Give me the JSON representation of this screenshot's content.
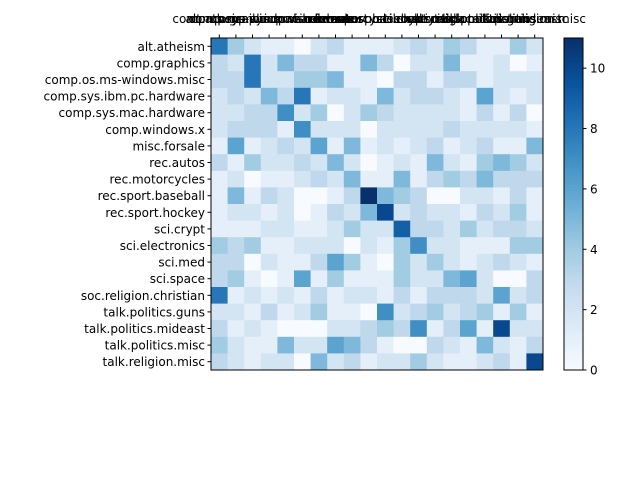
{
  "chart_data": {
    "type": "heatmap",
    "title": "",
    "xlabel": "",
    "ylabel": "",
    "categories": [
      "alt.atheism",
      "comp.graphics",
      "comp.os.ms-windows.misc",
      "comp.sys.ibm.pc.hardware",
      "comp.sys.mac.hardware",
      "comp.windows.x",
      "misc.forsale",
      "rec.autos",
      "rec.motorcycles",
      "rec.sport.baseball",
      "rec.sport.hockey",
      "sci.crypt",
      "sci.electronics",
      "sci.med",
      "sci.space",
      "soc.religion.christian",
      "talk.politics.guns",
      "talk.politics.mideast",
      "talk.politics.misc",
      "talk.religion.misc"
    ],
    "x_tick_labels": [
      "alt.atheism",
      "comp.graphics",
      "comp.os.ms-windows.misc",
      "comp.sys.ibm.pc.hardware",
      "comp.sys.mac.hardware",
      "comp.windows.x",
      "misc.forsale",
      "rec.autos",
      "rec.motorcycles",
      "rec.sport.baseball",
      "rec.sport.hockey",
      "sci.crypt",
      "sci.electronics",
      "sci.med",
      "sci.space",
      "soc.religion.christian",
      "talk.politics.guns",
      "talk.politics.mideast",
      "talk.politics.misc",
      "talk.religion.misc"
    ],
    "matrix": [
      [
        8,
        4,
        2,
        1,
        1,
        0,
        2,
        3,
        1,
        1,
        1,
        2,
        3,
        2,
        4,
        3,
        1,
        1,
        4,
        2
      ],
      [
        3,
        2,
        8,
        2,
        5,
        3,
        3,
        1,
        1,
        5,
        3,
        0,
        2,
        2,
        5,
        1,
        1,
        2,
        0,
        1
      ],
      [
        3,
        3,
        8,
        2,
        2,
        4,
        4,
        5,
        1,
        1,
        0,
        3,
        3,
        1,
        3,
        3,
        1,
        2,
        2,
        2
      ],
      [
        2,
        3,
        2,
        5,
        3,
        8,
        1,
        2,
        2,
        1,
        5,
        2,
        3,
        3,
        2,
        1,
        6,
        2,
        1,
        2
      ],
      [
        2,
        2,
        3,
        3,
        7,
        2,
        4,
        0,
        2,
        4,
        3,
        2,
        2,
        2,
        2,
        1,
        3,
        1,
        3,
        0
      ],
      [
        2,
        3,
        3,
        3,
        1,
        7,
        2,
        2,
        2,
        0,
        2,
        2,
        2,
        2,
        3,
        2,
        2,
        2,
        2,
        1
      ],
      [
        1,
        6,
        1,
        2,
        3,
        2,
        6,
        1,
        5,
        1,
        2,
        1,
        2,
        3,
        1,
        2,
        3,
        1,
        1,
        5
      ],
      [
        3,
        1,
        4,
        2,
        2,
        3,
        2,
        5,
        2,
        0,
        1,
        2,
        1,
        5,
        2,
        1,
        4,
        5,
        4,
        2
      ],
      [
        1,
        2,
        0,
        1,
        1,
        2,
        3,
        2,
        5,
        1,
        1,
        5,
        1,
        3,
        4,
        3,
        5,
        3,
        3,
        3
      ],
      [
        1,
        5,
        1,
        3,
        2,
        0,
        0,
        1,
        3,
        11,
        5,
        4,
        3,
        0,
        0,
        2,
        2,
        1,
        3,
        1
      ],
      [
        1,
        2,
        2,
        1,
        2,
        0,
        1,
        3,
        2,
        5,
        10,
        2,
        3,
        2,
        2,
        1,
        3,
        2,
        4,
        1
      ],
      [
        1,
        1,
        1,
        2,
        2,
        1,
        1,
        2,
        4,
        2,
        2,
        9,
        3,
        3,
        2,
        4,
        2,
        3,
        3,
        2
      ],
      [
        4,
        3,
        4,
        1,
        1,
        2,
        2,
        2,
        0,
        2,
        1,
        4,
        7,
        2,
        2,
        1,
        1,
        1,
        4,
        4
      ],
      [
        3,
        3,
        0,
        2,
        1,
        1,
        3,
        6,
        4,
        1,
        0,
        4,
        2,
        4,
        2,
        1,
        2,
        3,
        2,
        1
      ],
      [
        3,
        4,
        1,
        0,
        1,
        6,
        1,
        4,
        1,
        1,
        1,
        4,
        2,
        2,
        5,
        6,
        2,
        0,
        0,
        3
      ],
      [
        8,
        1,
        2,
        1,
        2,
        1,
        3,
        1,
        2,
        2,
        1,
        3,
        1,
        3,
        3,
        3,
        2,
        6,
        2,
        3
      ],
      [
        2,
        2,
        1,
        3,
        1,
        2,
        4,
        1,
        1,
        0,
        7,
        2,
        3,
        4,
        2,
        3,
        4,
        1,
        4,
        1
      ],
      [
        3,
        1,
        2,
        1,
        0,
        0,
        0,
        2,
        2,
        3,
        4,
        3,
        7,
        1,
        3,
        6,
        1,
        10,
        2,
        2
      ],
      [
        4,
        2,
        1,
        1,
        5,
        2,
        2,
        6,
        5,
        3,
        1,
        0,
        0,
        3,
        2,
        1,
        5,
        2,
        1,
        3
      ],
      [
        3,
        2,
        1,
        2,
        2,
        0,
        5,
        2,
        3,
        1,
        2,
        2,
        4,
        2,
        1,
        1,
        2,
        3,
        1,
        10
      ]
    ],
    "colorbar": {
      "min": 0,
      "max": 11,
      "ticks": [
        "0",
        "2",
        "4",
        "6",
        "8",
        "10"
      ],
      "colormap": "Blues"
    }
  }
}
